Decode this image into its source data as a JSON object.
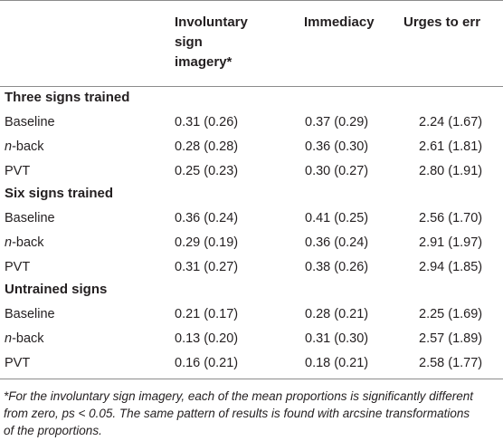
{
  "headers": {
    "col1": [
      "Involuntary",
      "sign",
      "imagery*"
    ],
    "col2": "Immediacy",
    "col3": "Urges to err"
  },
  "sections": [
    {
      "title": "Three signs trained",
      "rows": [
        {
          "label": "Baseline",
          "italic_prefix": "",
          "rest": "",
          "v1": "0.31 (0.26)",
          "v2": "0.37 (0.29)",
          "v3": "2.24 (1.67)"
        },
        {
          "label": "",
          "italic_prefix": "n",
          "rest": "-back",
          "v1": "0.28 (0.28)",
          "v2": "0.36 (0.30)",
          "v3": "2.61 (1.81)"
        },
        {
          "label": "PVT",
          "italic_prefix": "",
          "rest": "",
          "v1": "0.25 (0.23)",
          "v2": "0.30 (0.27)",
          "v3": "2.80 (1.91)"
        }
      ]
    },
    {
      "title": "Six signs trained",
      "rows": [
        {
          "label": "Baseline",
          "italic_prefix": "",
          "rest": "",
          "v1": "0.36 (0.24)",
          "v2": "0.41 (0.25)",
          "v3": "2.56 (1.70)"
        },
        {
          "label": "",
          "italic_prefix": "n",
          "rest": "-back",
          "v1": "0.29 (0.19)",
          "v2": "0.36 (0.24)",
          "v3": "2.91 (1.97)"
        },
        {
          "label": "PVT",
          "italic_prefix": "",
          "rest": "",
          "v1": "0.31 (0.27)",
          "v2": "0.38 (0.26)",
          "v3": "2.94 (1.85)"
        }
      ]
    },
    {
      "title": "Untrained signs",
      "rows": [
        {
          "label": "Baseline",
          "italic_prefix": "",
          "rest": "",
          "v1": "0.21 (0.17)",
          "v2": "0.28 (0.21)",
          "v3": "2.25 (1.69)"
        },
        {
          "label": "",
          "italic_prefix": "n",
          "rest": "-back",
          "v1": "0.13 (0.20)",
          "v2": "0.31 (0.30)",
          "v3": "2.57 (1.89)"
        },
        {
          "label": "PVT",
          "italic_prefix": "",
          "rest": "",
          "v1": "0.16 (0.21)",
          "v2": "0.18 (0.21)",
          "v3": "2.58 (1.77)"
        }
      ]
    }
  ],
  "footnote": {
    "line1": "*For the involuntary sign imagery, each of the mean proportions is significantly different",
    "line2": "from zero, ps < 0.05. The same pattern of results is found with arcsine transformations",
    "line3": "of the proportions."
  }
}
